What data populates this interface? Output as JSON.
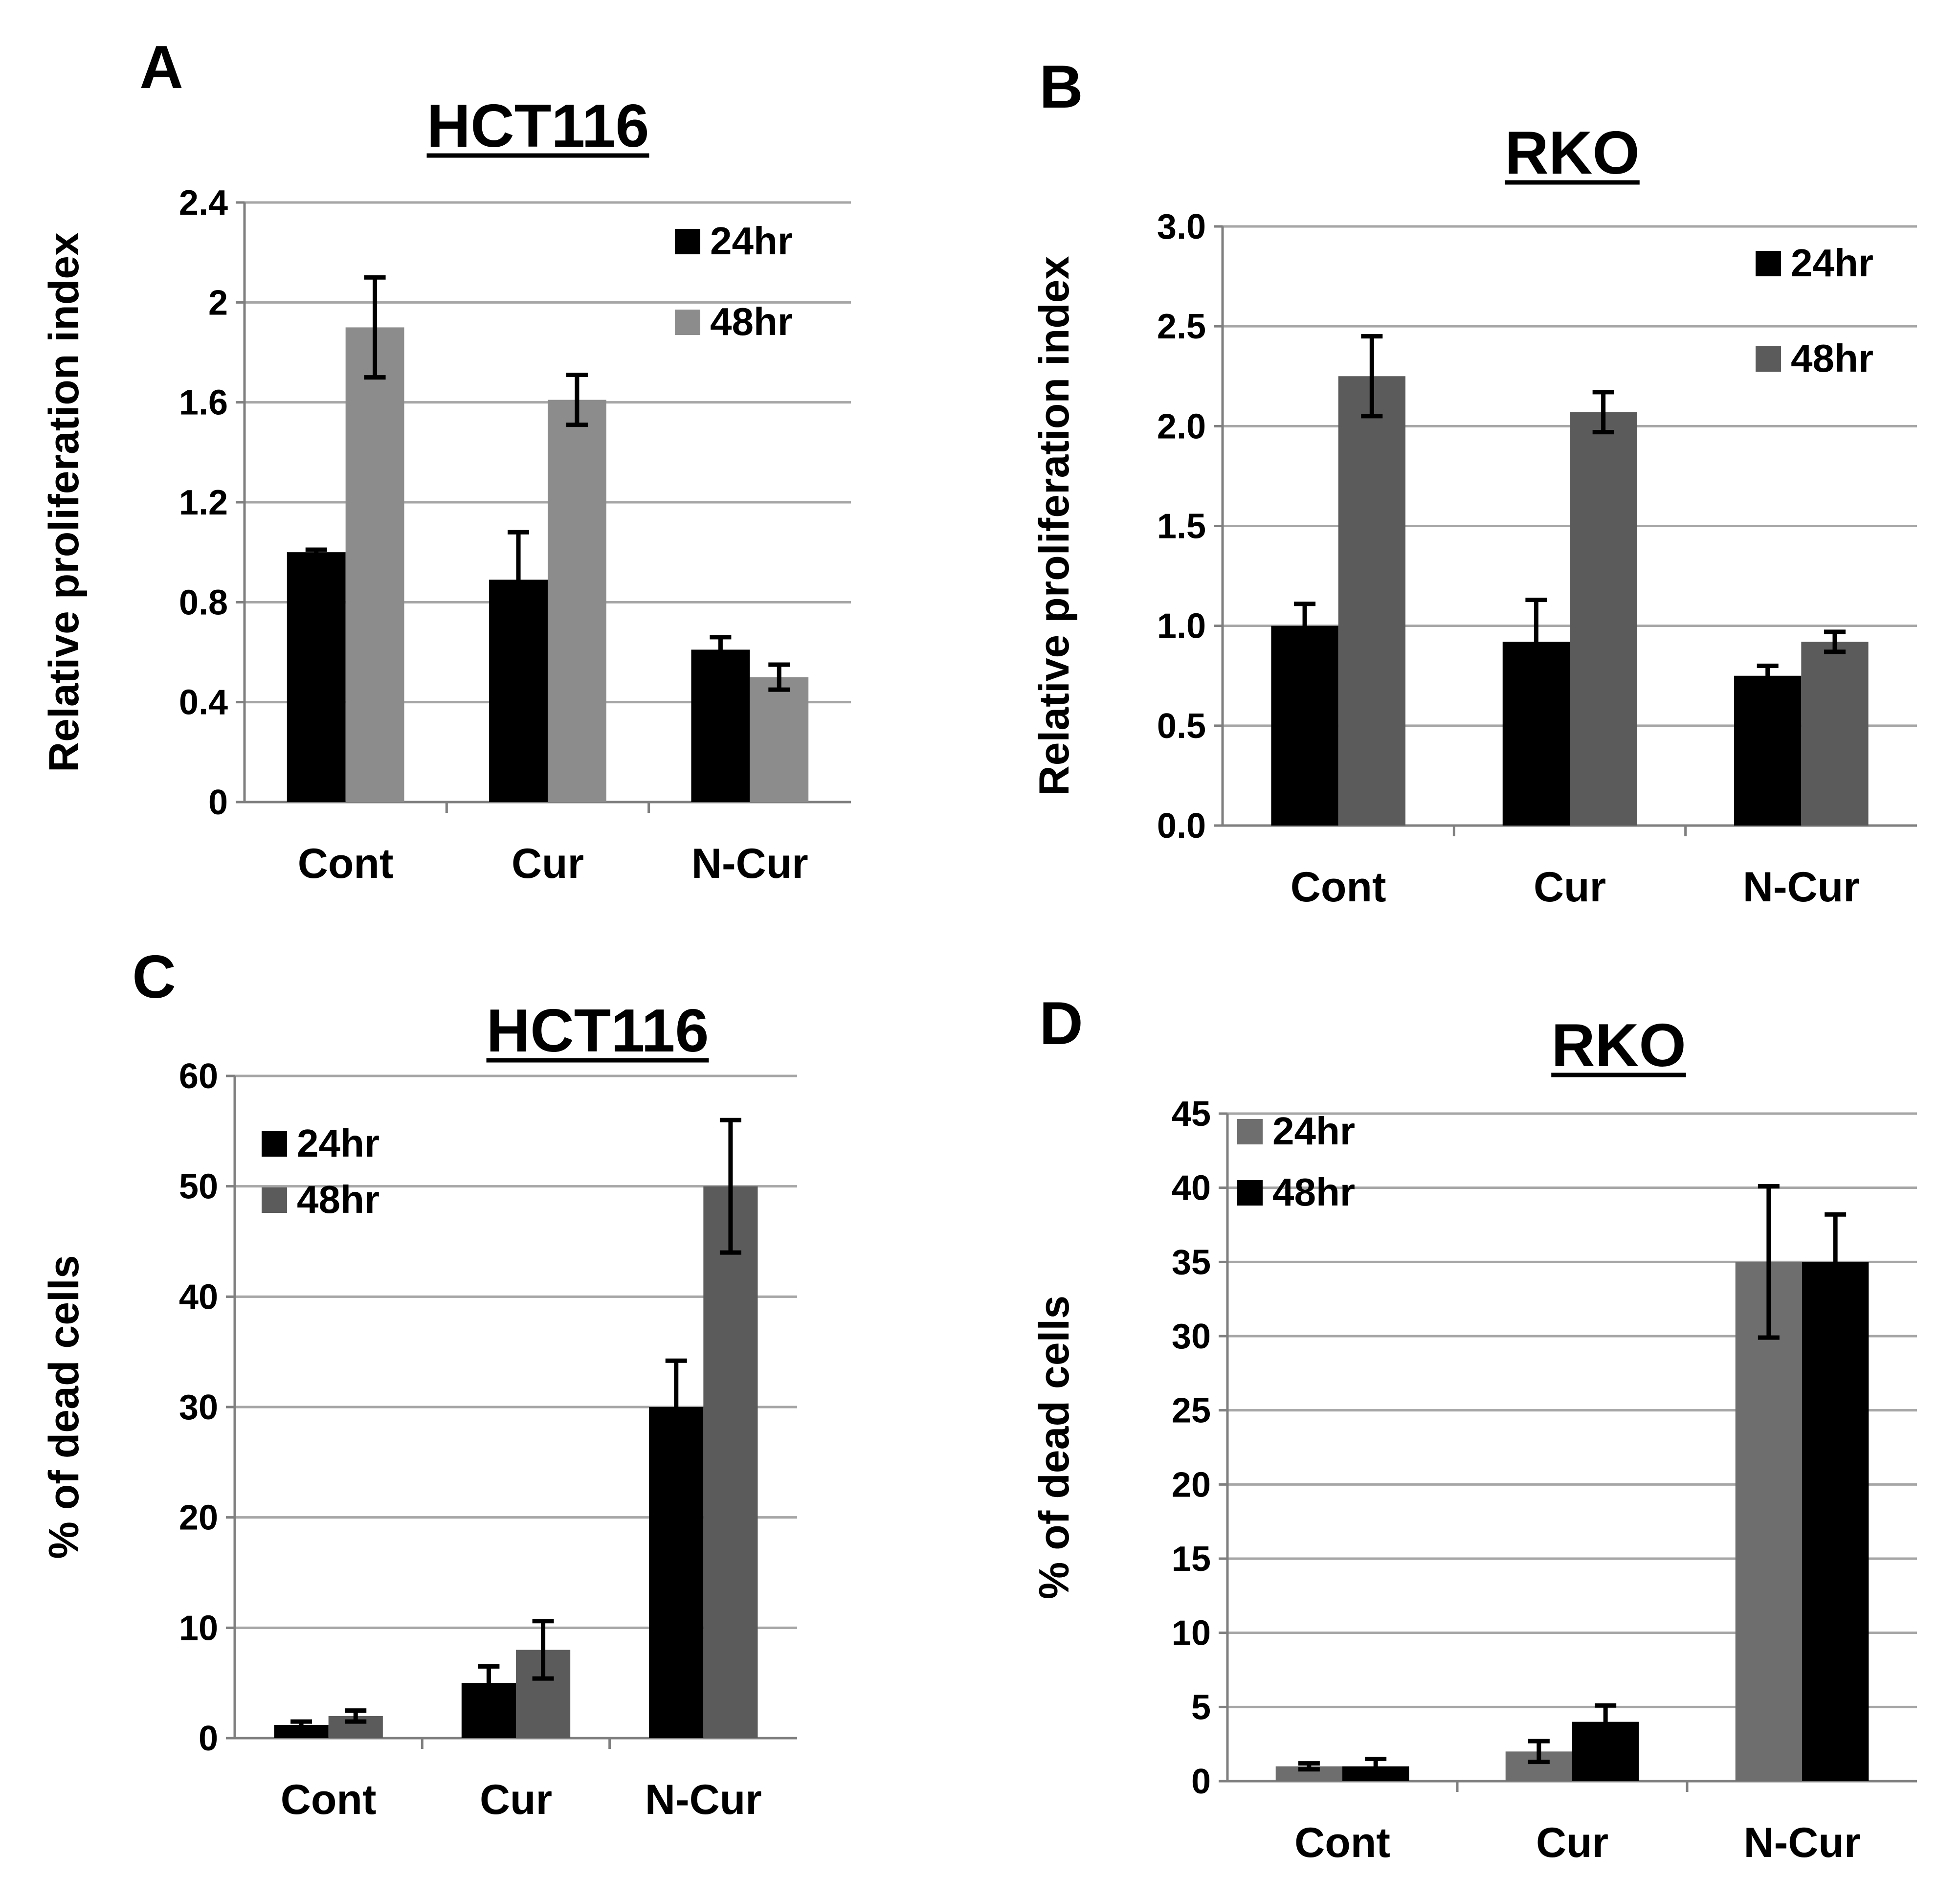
{
  "chart_data": [
    {
      "panel": "A",
      "type": "bar",
      "title": "HCT116",
      "xlabel": "",
      "ylabel": "Relative proliferation index",
      "categories": [
        "Cont",
        "Cur",
        "N-Cur"
      ],
      "ylim": [
        0,
        2.4
      ],
      "yticks": [
        "0",
        "0.4",
        "0.8",
        "1.2",
        "1.6",
        "2",
        "2.4"
      ],
      "grid": true,
      "legend_position": "top-right",
      "series": [
        {
          "name": "24hr",
          "color": "#000000",
          "values": [
            1.0,
            0.89,
            0.61
          ],
          "errors": [
            0.01,
            0.19,
            0.05
          ]
        },
        {
          "name": "48hr",
          "color": "#8c8c8c",
          "values": [
            1.9,
            1.61,
            0.5
          ],
          "errors": [
            0.2,
            0.1,
            0.05
          ]
        }
      ]
    },
    {
      "panel": "B",
      "type": "bar",
      "title": "RKO",
      "xlabel": "",
      "ylabel": "Relative proliferation index",
      "categories": [
        "Cont",
        "Cur",
        "N-Cur"
      ],
      "ylim": [
        0,
        3.0
      ],
      "yticks": [
        "0.0",
        "0.5",
        "1.0",
        "1.5",
        "2.0",
        "2.5",
        "3.0"
      ],
      "grid": true,
      "legend_position": "top-right",
      "series": [
        {
          "name": "24hr",
          "color": "#000000",
          "values": [
            1.0,
            0.92,
            0.75
          ],
          "errors": [
            0.11,
            0.21,
            0.05
          ]
        },
        {
          "name": "48hr",
          "color": "#5b5b5b",
          "values": [
            2.25,
            2.07,
            0.92
          ],
          "errors": [
            0.2,
            0.1,
            0.05
          ]
        }
      ]
    },
    {
      "panel": "C",
      "type": "bar",
      "title": "HCT116",
      "xlabel": "",
      "ylabel": "% of dead cells",
      "categories": [
        "Cont",
        "Cur",
        "N-Cur"
      ],
      "ylim": [
        0,
        60
      ],
      "yticks": [
        "0",
        "10",
        "20",
        "30",
        "40",
        "50",
        "60"
      ],
      "grid": true,
      "legend_position": "top-left",
      "series": [
        {
          "name": "24hr",
          "color": "#000000",
          "values": [
            1.2,
            5.0,
            30.0
          ],
          "errors": [
            0.3,
            1.5,
            4.2
          ]
        },
        {
          "name": "48hr",
          "color": "#5b5b5b",
          "values": [
            2.0,
            8.0,
            50.0
          ],
          "errors": [
            0.5,
            2.6,
            6.0
          ]
        }
      ]
    },
    {
      "panel": "D",
      "type": "bar",
      "title": "RKO",
      "xlabel": "",
      "ylabel": "% of dead cells",
      "categories": [
        "Cont",
        "Cur",
        "N-Cur"
      ],
      "ylim": [
        0,
        45
      ],
      "yticks": [
        "0",
        "5",
        "10",
        "15",
        "20",
        "25",
        "30",
        "35",
        "40",
        "45"
      ],
      "grid": true,
      "legend_position": "top-left",
      "series": [
        {
          "name": "24hr",
          "color": "#6e6e6e",
          "values": [
            1.0,
            2.0,
            35.0
          ],
          "errors": [
            0.2,
            0.7,
            5.1
          ]
        },
        {
          "name": "48hr",
          "color": "#000000",
          "values": [
            1.0,
            4.0,
            35.0
          ],
          "errors": [
            0.5,
            1.1,
            3.2
          ]
        }
      ]
    }
  ]
}
